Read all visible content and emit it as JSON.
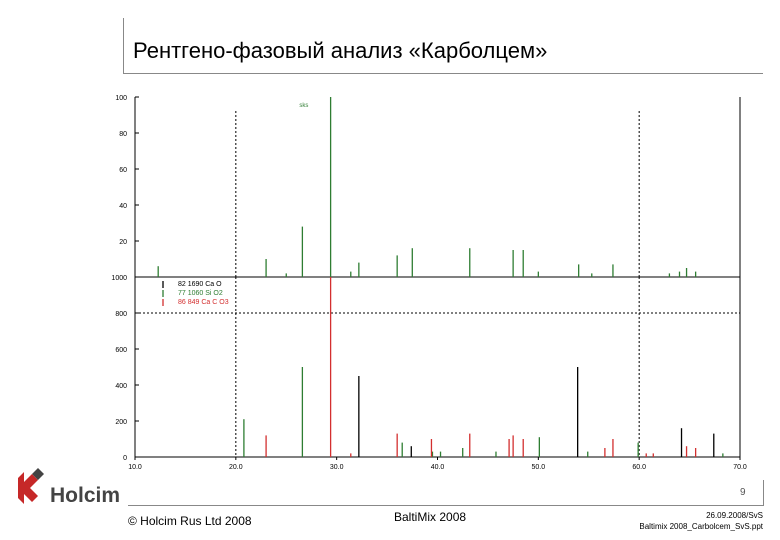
{
  "slide": {
    "title": "Рентгено-фазовый анализ «Карболцем»"
  },
  "footer": {
    "page_number": "9",
    "copyright": "© Holcim Rus Ltd 2008",
    "event": "BaltiMix 2008",
    "date": "26.09.2008/SvS",
    "file": "Baltimix 2008_Carbolcem_SvS.ppt",
    "logo_text": "Holcim"
  },
  "chart_data": [
    {
      "type": "bar",
      "title": "",
      "xlim": [
        10,
        70
      ],
      "ylim": [
        0,
        100
      ],
      "y_ticks": [
        "20",
        "40",
        "60",
        "80",
        "100"
      ],
      "annotation": "sks",
      "dotted_vlines_x": [
        20,
        60
      ],
      "series": [
        {
          "color": "#2e7d32",
          "peaks": [
            [
              12.3,
              6
            ],
            [
              23.0,
              10
            ],
            [
              25.0,
              2
            ],
            [
              26.6,
              28
            ],
            [
              29.4,
              100
            ],
            [
              31.4,
              3
            ],
            [
              32.2,
              8
            ],
            [
              36.0,
              12
            ],
            [
              37.5,
              16
            ],
            [
              43.2,
              16
            ],
            [
              47.5,
              15
            ],
            [
              48.5,
              15
            ],
            [
              50.0,
              3
            ],
            [
              54.0,
              7
            ],
            [
              55.3,
              2
            ],
            [
              57.4,
              7
            ],
            [
              63.0,
              2
            ],
            [
              64.0,
              3
            ],
            [
              64.7,
              5
            ],
            [
              65.6,
              3
            ]
          ]
        }
      ]
    },
    {
      "type": "bar",
      "title": "",
      "xlim": [
        10,
        70
      ],
      "ylim": [
        0,
        1000
      ],
      "y_ticks": [
        "0",
        "200",
        "400",
        "600",
        "800",
        "1000"
      ],
      "x_ticks": [
        "10.0",
        "20.0",
        "30.0",
        "40.0",
        "50.0",
        "60.0",
        "70.0"
      ],
      "dotted_vlines_x": [
        20,
        60
      ],
      "dotted_hline_y": 800,
      "legend_placement": "top-left",
      "legend": [
        "82 1690 Ca O",
        "77 1060 Si O2",
        "86 849 Ca C O3"
      ],
      "series": [
        {
          "color": "#000000",
          "peaks": [
            [
              32.2,
              450
            ],
            [
              37.4,
              60
            ],
            [
              53.9,
              500
            ],
            [
              64.2,
              160
            ],
            [
              67.4,
              130
            ]
          ]
        },
        {
          "color": "#2e7d32",
          "peaks": [
            [
              20.8,
              210
            ],
            [
              26.6,
              500
            ],
            [
              36.5,
              80
            ],
            [
              39.5,
              30
            ],
            [
              40.3,
              30
            ],
            [
              42.5,
              50
            ],
            [
              45.8,
              30
            ],
            [
              50.1,
              110
            ],
            [
              54.9,
              30
            ],
            [
              59.9,
              80
            ],
            [
              68.3,
              20
            ]
          ]
        },
        {
          "color": "#d32f2f",
          "peaks": [
            [
              23.0,
              120
            ],
            [
              29.4,
              1000
            ],
            [
              31.4,
              20
            ],
            [
              36.0,
              130
            ],
            [
              39.4,
              100
            ],
            [
              43.2,
              130
            ],
            [
              47.1,
              100
            ],
            [
              47.5,
              120
            ],
            [
              48.5,
              100
            ],
            [
              56.6,
              50
            ],
            [
              57.4,
              100
            ],
            [
              60.7,
              20
            ],
            [
              61.4,
              20
            ],
            [
              64.7,
              60
            ],
            [
              65.6,
              50
            ]
          ]
        }
      ]
    }
  ]
}
